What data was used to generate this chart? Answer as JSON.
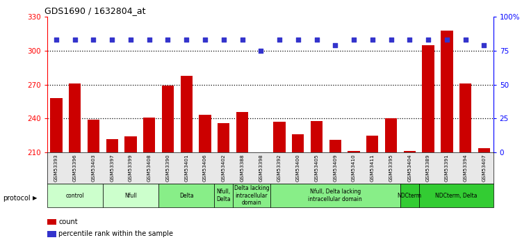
{
  "title": "GDS1690 / 1632804_at",
  "samples": [
    "GSM53393",
    "GSM53396",
    "GSM53403",
    "GSM53397",
    "GSM53399",
    "GSM53408",
    "GSM53390",
    "GSM53401",
    "GSM53406",
    "GSM53402",
    "GSM53388",
    "GSM53398",
    "GSM53392",
    "GSM53400",
    "GSM53405",
    "GSM53409",
    "GSM53410",
    "GSM53411",
    "GSM53395",
    "GSM53404",
    "GSM53389",
    "GSM53391",
    "GSM53394",
    "GSM53407"
  ],
  "counts": [
    258,
    271,
    239,
    222,
    224,
    241,
    269,
    278,
    243,
    236,
    246,
    210,
    237,
    226,
    238,
    221,
    211,
    225,
    240,
    211,
    305,
    318,
    271,
    214
  ],
  "percentiles": [
    83,
    83,
    83,
    83,
    83,
    83,
    83,
    83,
    83,
    83,
    83,
    75,
    83,
    83,
    83,
    79,
    83,
    83,
    83,
    83,
    83,
    83,
    83,
    79
  ],
  "ylim_left": [
    210,
    330
  ],
  "ylim_right": [
    0,
    100
  ],
  "yticks_left": [
    210,
    240,
    270,
    300,
    330
  ],
  "yticks_right": [
    0,
    25,
    50,
    75,
    100
  ],
  "ytick_labels_right": [
    "0",
    "25",
    "50",
    "75",
    "100%"
  ],
  "bar_color": "#cc0000",
  "dot_color": "#3333cc",
  "gridline_values": [
    240,
    270,
    300
  ],
  "protocol_groups": [
    {
      "label": "control",
      "start": 0,
      "end": 2,
      "color": "#ccffcc"
    },
    {
      "label": "Nfull",
      "start": 3,
      "end": 5,
      "color": "#ccffcc"
    },
    {
      "label": "Delta",
      "start": 6,
      "end": 8,
      "color": "#88ee88"
    },
    {
      "label": "Nfull,\nDelta",
      "start": 9,
      "end": 9,
      "color": "#88ee88"
    },
    {
      "label": "Delta lacking\nintracellular\ndomain",
      "start": 10,
      "end": 11,
      "color": "#88ee88"
    },
    {
      "label": "Nfull, Delta lacking\nintracellular domain",
      "start": 12,
      "end": 18,
      "color": "#88ee88"
    },
    {
      "label": "NDCterm",
      "start": 19,
      "end": 19,
      "color": "#33cc33"
    },
    {
      "label": "NDCterm, Delta",
      "start": 20,
      "end": 23,
      "color": "#33cc33"
    }
  ],
  "legend_bar_label": "count",
  "legend_dot_label": "percentile rank within the sample",
  "protocol_label": "protocol",
  "plot_bg_color": "#e8e8e8",
  "white": "#ffffff"
}
